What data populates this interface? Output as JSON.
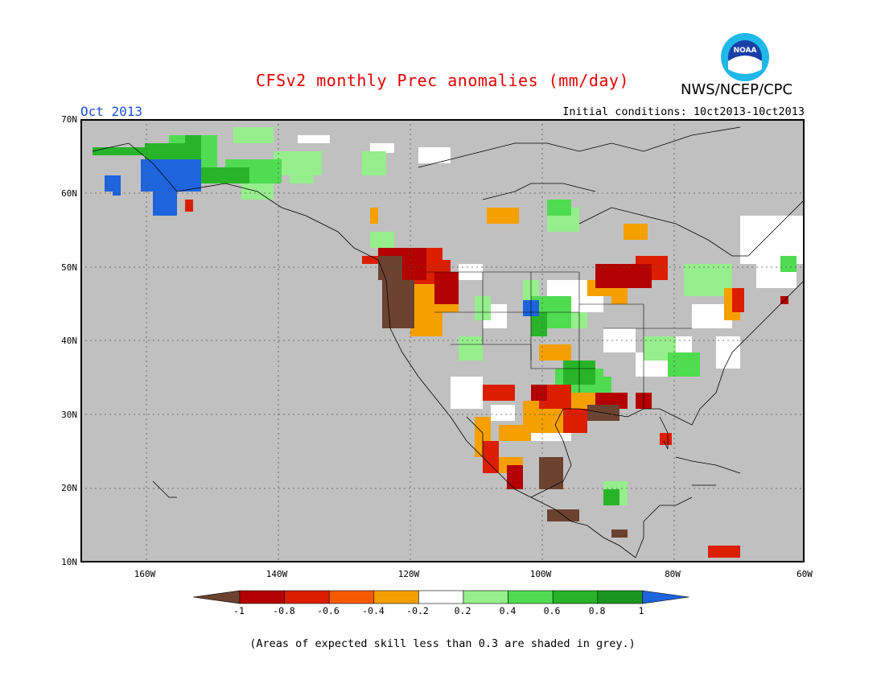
{
  "header": {
    "title": "CFSv2 monthly Prec anomalies (mm/day)",
    "agency": "NWS/NCEP/CPC",
    "logo_text": "NOAA",
    "month": "Oct 2013",
    "initial_conditions": "Initial conditions: 10ct2013-10ct2013"
  },
  "map": {
    "latitude_labels": [
      "70N",
      "60N",
      "50N",
      "40N",
      "30N",
      "20N",
      "10N"
    ],
    "longitude_labels": [
      "160W",
      "140W",
      "120W",
      "100W",
      "80W",
      "60W"
    ],
    "extent": {
      "lon_min": -170,
      "lon_max": -60,
      "lat_min": 10,
      "lat_max": 70
    },
    "background_color": "#c0c0c0",
    "gridlines": true
  },
  "colorbar": {
    "labels": [
      "-1",
      "-0.8",
      "-0.6",
      "-0.4",
      "-0.2",
      "0.2",
      "0.4",
      "0.6",
      "0.8",
      "1"
    ],
    "colors": [
      "#6b4230",
      "#b40000",
      "#dc1e00",
      "#f55a00",
      "#f5a000",
      "#ffffff",
      "#96ee8c",
      "#50dc50",
      "#28b428",
      "#1a9620",
      "#1e64dc"
    ]
  },
  "footnote": "(Areas of expected skill less than 0.3 are shaded in grey.)"
}
